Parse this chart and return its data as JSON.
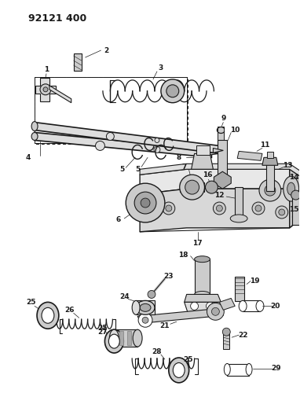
{
  "title": "92121 400",
  "bg_color": "#ffffff",
  "line_color": "#1a1a1a",
  "fig_width": 3.82,
  "fig_height": 5.33,
  "dpi": 100,
  "title_fontsize": 9,
  "label_fontsize": 6.5
}
